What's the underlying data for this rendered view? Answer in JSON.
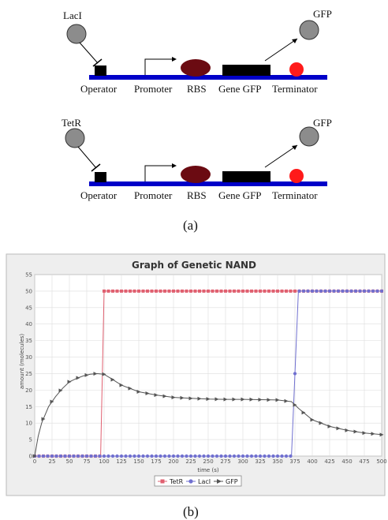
{
  "diagram": {
    "circuit1": {
      "repressor": "LacI",
      "output": "GFP",
      "parts": [
        "Operator",
        "Promoter",
        "RBS",
        "Gene GFP",
        "Terminator"
      ]
    },
    "circuit2": {
      "repressor": "TetR",
      "output": "GFP",
      "parts": [
        "Operator",
        "Promoter",
        "RBS",
        "Gene GFP",
        "Terminator"
      ]
    },
    "caption_a": "(a)",
    "caption_b": "(b)",
    "colors": {
      "dna": "#0000c8",
      "protein": "#8c8c8c",
      "rbs": "#6b0b12",
      "terminator": "#ff1a1a",
      "block": "#000000"
    }
  },
  "chart_data": {
    "type": "line",
    "title": "Graph of Genetic NAND",
    "xlabel": "time (s)",
    "ylabel": "amount (molecules)",
    "xlim": [
      0,
      500
    ],
    "ylim": [
      0,
      55
    ],
    "xticks": [
      "0",
      "25",
      "50",
      "75",
      "100",
      "125",
      "150",
      "175",
      "200",
      "225",
      "250",
      "275",
      "300",
      "325",
      "350",
      "375",
      "400",
      "425",
      "450",
      "475",
      "500"
    ],
    "yticks": [
      "0",
      "5",
      "10",
      "15",
      "20",
      "25",
      "30",
      "35",
      "40",
      "45",
      "50",
      "55"
    ],
    "grid": true,
    "legend": "bottom",
    "series": [
      {
        "name": "TetR",
        "color": "#e06070",
        "marker": "square",
        "x": [
          0,
          95,
          100,
          500
        ],
        "y": [
          0,
          0,
          50,
          50
        ]
      },
      {
        "name": "LacI",
        "color": "#7070d0",
        "marker": "circle",
        "x": [
          0,
          370,
          380,
          500
        ],
        "y": [
          0,
          0,
          50,
          50
        ]
      },
      {
        "name": "GFP",
        "color": "#555555",
        "marker": "triangle",
        "x": [
          0,
          5,
          10,
          20,
          30,
          40,
          50,
          60,
          70,
          80,
          90,
          100,
          110,
          125,
          150,
          175,
          200,
          225,
          250,
          275,
          300,
          325,
          350,
          370,
          380,
          400,
          425,
          450,
          475,
          500
        ],
        "y": [
          0,
          6,
          10,
          15,
          18,
          20.5,
          22.5,
          23.5,
          24.3,
          24.8,
          25,
          24.8,
          23.5,
          21.5,
          19.5,
          18.5,
          17.8,
          17.5,
          17.3,
          17.2,
          17.2,
          17.1,
          17.0,
          16.5,
          14.5,
          11.0,
          9.0,
          7.8,
          7.0,
          6.5
        ]
      }
    ]
  }
}
